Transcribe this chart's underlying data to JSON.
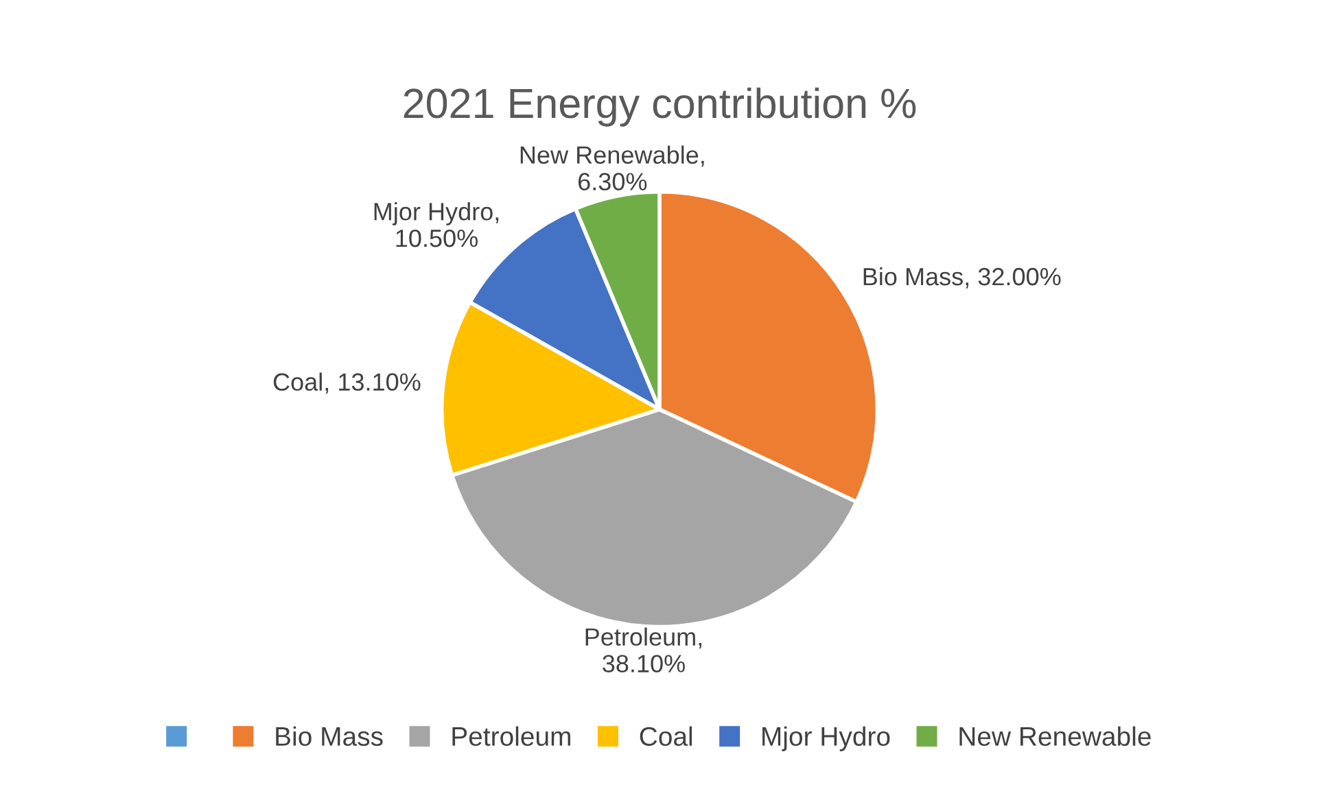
{
  "chart_data": {
    "type": "pie",
    "title": "2021 Energy contribution %",
    "categories": [
      null,
      "Bio Mass",
      "Petroleum",
      "Coal",
      "Mjor Hydro",
      "New Renewable"
    ],
    "values": [
      0,
      32.0,
      38.1,
      13.1,
      10.5,
      6.3
    ],
    "colors": [
      "#5b9bd5",
      "#ed7d31",
      "#a5a5a5",
      "#ffc000",
      "#4472c4",
      "#70ad47"
    ],
    "value_labels": [
      null,
      "Bio Mass, 32.00%",
      "Petroleum,\n38.10%",
      "Coal, 13.10%",
      "Mjor Hydro,\n10.50%",
      "New Renewable,\n6.30%"
    ],
    "legend": "bottom"
  }
}
